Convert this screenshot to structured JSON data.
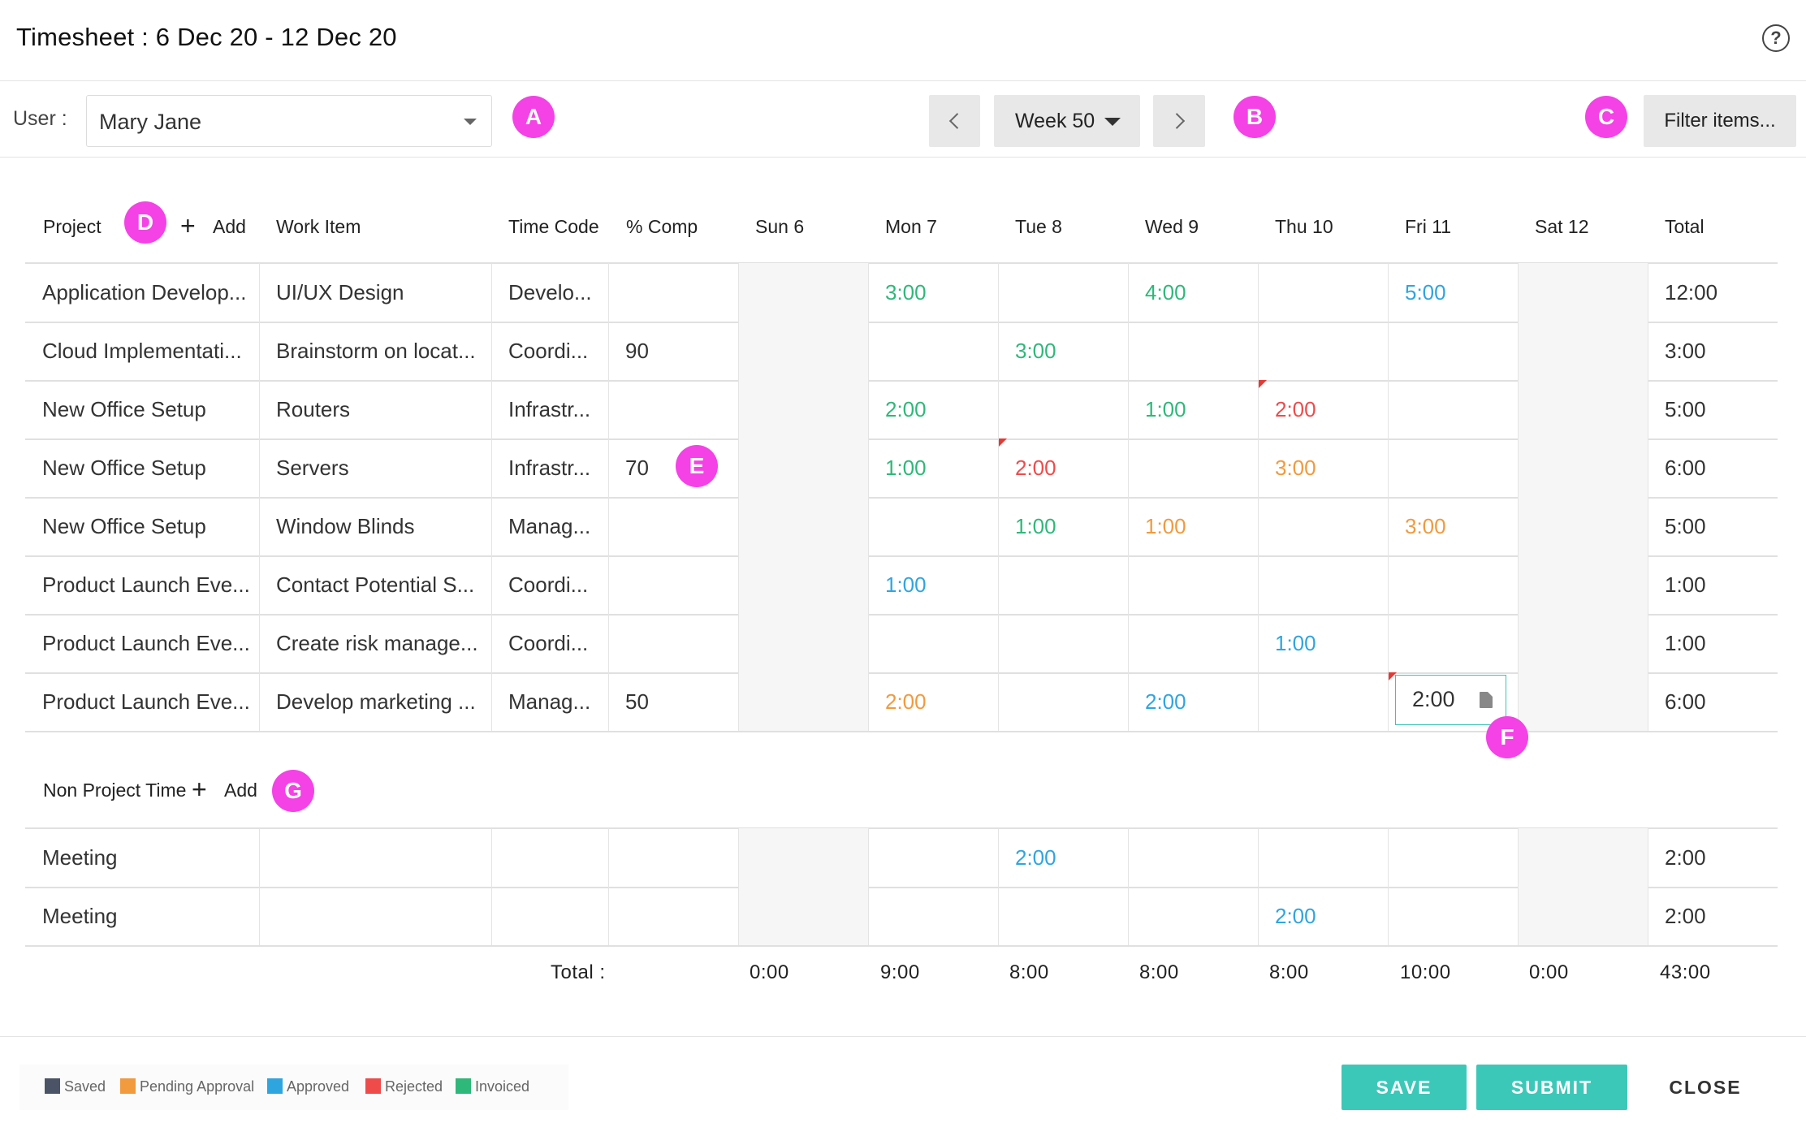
{
  "title": "Timesheet : 6 Dec 20 - 12 Dec 20",
  "toolbar": {
    "user_label": "User :",
    "user_value": "Mary Jane",
    "week_label": "Week 50",
    "filter_label": "Filter items..."
  },
  "markers": [
    "A",
    "B",
    "C",
    "D",
    "E",
    "F",
    "G"
  ],
  "columns": {
    "project": "Project",
    "add": "Add",
    "work_item": "Work Item",
    "time_code": "Time Code",
    "comp": "% Comp",
    "days": [
      "Sun 6",
      "Mon 7",
      "Tue 8",
      "Wed 9",
      "Thu 10",
      "Fri 11",
      "Sat 12"
    ],
    "total": "Total"
  },
  "status_colors": {
    "saved": "#4a5466",
    "pending": "#f19a3e",
    "approved": "#2fa5e0",
    "rejected": "#ef4b4b",
    "invoiced": "#2eb87a"
  },
  "project_rows": [
    {
      "project": "Application Develop...",
      "work_item": "UI/UX Design",
      "time_code": "Develo...",
      "comp": "",
      "days": [
        "",
        "3:00",
        "",
        "4:00",
        "",
        "5:00",
        ""
      ],
      "status": [
        "",
        "invoiced",
        "",
        "invoiced",
        "",
        "approved",
        ""
      ],
      "total": "12:00"
    },
    {
      "project": "Cloud Implementati...",
      "work_item": "Brainstorm on locat...",
      "time_code": "Coordi...",
      "comp": "90",
      "days": [
        "",
        "",
        "3:00",
        "",
        "",
        "",
        ""
      ],
      "status": [
        "",
        "",
        "invoiced",
        "",
        "",
        "",
        ""
      ],
      "total": "3:00"
    },
    {
      "project": "New Office Setup",
      "work_item": "Routers",
      "time_code": "Infrastr...",
      "comp": "",
      "days": [
        "",
        "2:00",
        "",
        "1:00",
        "2:00",
        "",
        ""
      ],
      "status": [
        "",
        "invoiced",
        "",
        "invoiced",
        "rejected",
        "",
        ""
      ],
      "total": "5:00"
    },
    {
      "project": "New Office Setup",
      "work_item": "Servers",
      "time_code": "Infrastr...",
      "comp": "70",
      "days": [
        "",
        "1:00",
        "2:00",
        "",
        "3:00",
        "",
        ""
      ],
      "status": [
        "",
        "invoiced",
        "rejected",
        "",
        "pending",
        "",
        ""
      ],
      "total": "6:00"
    },
    {
      "project": "New Office Setup",
      "work_item": "Window Blinds",
      "time_code": "Manag...",
      "comp": "",
      "days": [
        "",
        "",
        "1:00",
        "1:00",
        "",
        "3:00",
        ""
      ],
      "status": [
        "",
        "",
        "invoiced",
        "pending",
        "",
        "pending",
        ""
      ],
      "total": "5:00"
    },
    {
      "project": "Product Launch Eve...",
      "work_item": "Contact Potential S...",
      "time_code": "Coordi...",
      "comp": "",
      "days": [
        "",
        "1:00",
        "",
        "",
        "",
        "",
        ""
      ],
      "status": [
        "",
        "approved",
        "",
        "",
        "",
        "",
        ""
      ],
      "total": "1:00"
    },
    {
      "project": "Product Launch Eve...",
      "work_item": "Create risk manage...",
      "time_code": "Coordi...",
      "comp": "",
      "days": [
        "",
        "",
        "",
        "",
        "1:00",
        "",
        ""
      ],
      "status": [
        "",
        "",
        "",
        "",
        "approved",
        "",
        ""
      ],
      "total": "1:00"
    },
    {
      "project": "Product Launch Eve...",
      "work_item": "Develop marketing ...",
      "time_code": "Manag...",
      "comp": "50",
      "days": [
        "",
        "2:00",
        "",
        "2:00",
        "",
        "2:00",
        ""
      ],
      "status": [
        "",
        "pending",
        "",
        "approved",
        "",
        "saved",
        ""
      ],
      "total": "6:00"
    }
  ],
  "editing_cell": {
    "value": "2:00"
  },
  "non_project": {
    "label": "Non Project Time",
    "add": "Add",
    "rows": [
      {
        "project": "Meeting",
        "work_item": "",
        "time_code": "",
        "comp": "",
        "days": [
          "",
          "",
          "2:00",
          "",
          "",
          "",
          ""
        ],
        "status": [
          "",
          "",
          "approved",
          "",
          "",
          "",
          ""
        ],
        "total": "2:00"
      },
      {
        "project": "Meeting",
        "work_item": "",
        "time_code": "",
        "comp": "",
        "days": [
          "",
          "",
          "",
          "",
          "2:00",
          "",
          ""
        ],
        "status": [
          "",
          "",
          "",
          "",
          "approved",
          "",
          ""
        ],
        "total": "2:00"
      }
    ]
  },
  "totals": {
    "label": "Total :",
    "days": [
      "0:00",
      "9:00",
      "8:00",
      "8:00",
      "8:00",
      "10:00",
      "0:00"
    ],
    "grand": "43:00"
  },
  "legend": [
    {
      "label": "Saved",
      "color": "#4a5466"
    },
    {
      "label": "Pending Approval",
      "color": "#f19a3e"
    },
    {
      "label": "Approved",
      "color": "#2fa5e0"
    },
    {
      "label": "Rejected",
      "color": "#ef4b4b"
    },
    {
      "label": "Invoiced",
      "color": "#2eb87a"
    }
  ],
  "buttons": {
    "save": "SAVE",
    "submit": "SUBMIT",
    "close": "CLOSE"
  }
}
